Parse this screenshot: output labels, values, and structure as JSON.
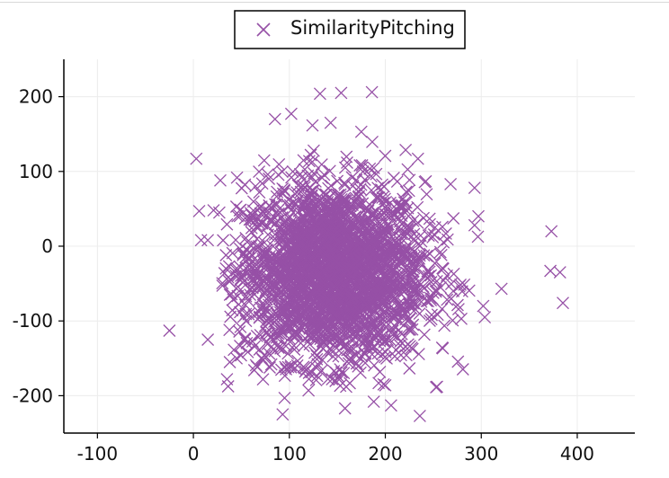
{
  "chart_data": {
    "type": "scatter",
    "title": "",
    "xlabel": "",
    "ylabel": "",
    "xlim": [
      -135,
      460
    ],
    "ylim": [
      -250,
      250
    ],
    "x_ticks": [
      -100,
      0,
      100,
      200,
      300,
      400
    ],
    "y_ticks": [
      -200,
      -100,
      0,
      100,
      200
    ],
    "grid": true,
    "legend": {
      "placement": "top-center",
      "entries": [
        "SimilarityPitching"
      ]
    },
    "series": [
      {
        "name": "SimilarityPitching",
        "color": "#9650a6",
        "marker": "x-icon",
        "outliers": [
          [
            3,
            117
          ],
          [
            6,
            47
          ],
          [
            8,
            8
          ],
          [
            15,
            8
          ],
          [
            21,
            48
          ],
          [
            28,
            88
          ],
          [
            27,
            45
          ],
          [
            -25,
            -113
          ],
          [
            15,
            -125
          ],
          [
            35,
            -178
          ],
          [
            38,
            -155
          ],
          [
            45,
            -150
          ],
          [
            93,
            -225
          ],
          [
            95,
            -203
          ],
          [
            132,
            204
          ],
          [
            154,
            205
          ],
          [
            186,
            206
          ],
          [
            102,
            177
          ],
          [
            85,
            170
          ],
          [
            143,
            165
          ],
          [
            175,
            153
          ],
          [
            234,
            117
          ],
          [
            268,
            83
          ],
          [
            293,
            78
          ],
          [
            297,
            40
          ],
          [
            293,
            28
          ],
          [
            302,
            -80
          ],
          [
            321,
            -57
          ],
          [
            373,
            20
          ],
          [
            372,
            -33
          ],
          [
            382,
            -35
          ],
          [
            385,
            -76
          ],
          [
            236,
            -227
          ],
          [
            158,
            -217
          ],
          [
            206,
            -213
          ],
          [
            188,
            -208
          ],
          [
            200,
            -186
          ],
          [
            193,
            -183
          ],
          [
            120,
            -193
          ]
        ],
        "cluster": {
          "count": 2600,
          "center": [
            145,
            -35
          ],
          "spread": [
            48,
            60
          ],
          "x_range": [
            30,
            320
          ],
          "y_range": [
            -190,
            165
          ]
        }
      }
    ]
  }
}
